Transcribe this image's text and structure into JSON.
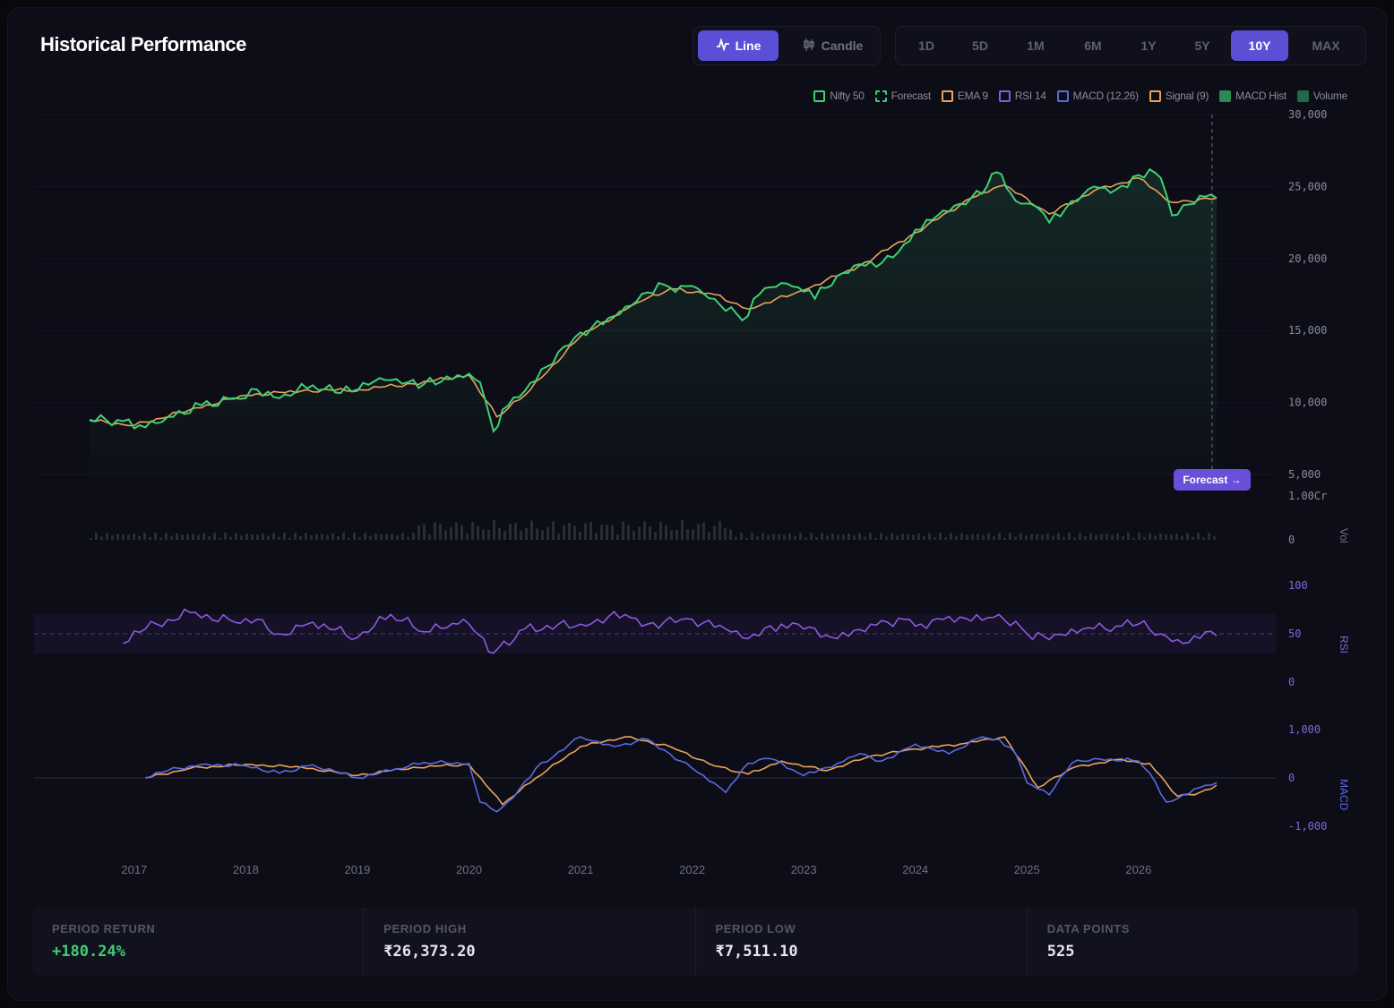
{
  "header": {
    "title": "Historical Performance",
    "chart_types": [
      {
        "label": "Line",
        "icon": "line-chart-icon",
        "active": true
      },
      {
        "label": "Candle",
        "icon": "candlestick-icon",
        "active": false
      }
    ],
    "ranges": [
      {
        "label": "1D",
        "active": false
      },
      {
        "label": "5D",
        "active": false
      },
      {
        "label": "1M",
        "active": false
      },
      {
        "label": "6M",
        "active": false
      },
      {
        "label": "1Y",
        "active": false
      },
      {
        "label": "5Y",
        "active": false
      },
      {
        "label": "10Y",
        "active": true
      },
      {
        "label": "MAX",
        "active": false
      }
    ]
  },
  "legend": [
    {
      "label": "Nifty 50",
      "color": "#3ecf74",
      "style": "outline"
    },
    {
      "label": "Forecast",
      "color": "#3ecf74",
      "style": "dashed"
    },
    {
      "label": "EMA 9",
      "color": "#e8a45a",
      "style": "outline"
    },
    {
      "label": "RSI 14",
      "color": "#8a5ae0",
      "style": "outline"
    },
    {
      "label": "MACD (12,26)",
      "color": "#5a6ae0",
      "style": "outline"
    },
    {
      "label": "Signal (9)",
      "color": "#e8a45a",
      "style": "outline"
    },
    {
      "label": "MACD Hist",
      "color": "#2a8a56",
      "style": "filled"
    },
    {
      "label": "Volume",
      "color": "#1f6b48",
      "style": "filled"
    }
  ],
  "forecast_label": "Forecast →",
  "colors": {
    "price": "#3ecf74",
    "ema": "#e8a45a",
    "rsi": "#8a5ae0",
    "macd": "#5a6ae0",
    "signal": "#e8a45a",
    "accent": "#5b4fd6"
  },
  "panels": {
    "vol_label": "Vol",
    "rsi_label": "RSI",
    "macd_label": "MACD"
  },
  "chart_data": {
    "type": "line",
    "x_ticks": [
      "2017",
      "2018",
      "2019",
      "2020",
      "2021",
      "2022",
      "2023",
      "2024",
      "2025",
      "2026"
    ],
    "price_axis": {
      "ticks": [
        "30,000",
        "25,000",
        "20,000",
        "15,000",
        "10,000",
        "5,000"
      ],
      "ylim": [
        5000,
        30000
      ]
    },
    "volume_axis": {
      "ticks": [
        "1.00Cr",
        "0"
      ]
    },
    "rsi_axis": {
      "ticks": [
        "100",
        "50",
        "0"
      ],
      "ylim": [
        0,
        100
      ]
    },
    "macd_axis": {
      "ticks": [
        "1,000",
        "0",
        "-1,000"
      ],
      "ylim": [
        -1000,
        1000
      ]
    },
    "series": [
      {
        "name": "Nifty 50",
        "x": [
          2016.6,
          2016.9,
          2017.0,
          2017.3,
          2017.6,
          2017.9,
          2018.1,
          2018.3,
          2018.6,
          2018.8,
          2019.0,
          2019.2,
          2019.4,
          2019.6,
          2019.9,
          2020.0,
          2020.1,
          2020.22,
          2020.3,
          2020.5,
          2020.7,
          2020.9,
          2021.1,
          2021.3,
          2021.5,
          2021.7,
          2021.8,
          2022.0,
          2022.2,
          2022.45,
          2022.6,
          2022.8,
          2022.95,
          2023.1,
          2023.3,
          2023.5,
          2023.7,
          2023.9,
          2024.0,
          2024.2,
          2024.4,
          2024.6,
          2024.73,
          2024.9,
          2025.1,
          2025.2,
          2025.4,
          2025.6,
          2025.8,
          2026.0,
          2026.1,
          2026.2,
          2026.3,
          2026.5,
          2026.6,
          2026.7
        ],
        "values": [
          8800,
          8700,
          8200,
          9000,
          9800,
          10300,
          10900,
          10300,
          11200,
          10700,
          10800,
          11700,
          11300,
          11300,
          11900,
          12000,
          11400,
          8000,
          9500,
          10800,
          12500,
          14000,
          15200,
          16000,
          17000,
          18300,
          18000,
          18100,
          17200,
          15700,
          17500,
          18300,
          18000,
          17200,
          18800,
          19600,
          19700,
          21000,
          22000,
          23000,
          23800,
          24500,
          26000,
          24000,
          23500,
          22500,
          24000,
          25000,
          24800,
          25800,
          26200,
          25600,
          23000,
          23800,
          24300,
          24200
        ]
      },
      {
        "name": "EMA 9",
        "x": [
          2016.6,
          2017.0,
          2017.5,
          2018.0,
          2018.5,
          2019.0,
          2019.5,
          2020.0,
          2020.25,
          2020.5,
          2021.0,
          2021.5,
          2021.8,
          2022.2,
          2022.5,
          2023.0,
          2023.5,
          2024.0,
          2024.5,
          2024.8,
          2025.2,
          2025.6,
          2026.0,
          2026.3,
          2026.7
        ],
        "values": [
          8750,
          8400,
          9500,
          10500,
          10800,
          10900,
          11300,
          11900,
          9000,
          10500,
          14600,
          16900,
          17900,
          17500,
          16500,
          17800,
          19500,
          21800,
          24200,
          25100,
          23100,
          24700,
          25600,
          23900,
          24200
        ]
      },
      {
        "name": "RSI 14",
        "x": [
          2016.9,
          2017.1,
          2017.5,
          2017.9,
          2018.1,
          2018.3,
          2018.6,
          2019.0,
          2019.3,
          2019.6,
          2019.9,
          2020.0,
          2020.22,
          2020.5,
          2021.0,
          2021.4,
          2021.6,
          2022.0,
          2022.3,
          2022.5,
          2022.8,
          2023.0,
          2023.3,
          2023.6,
          2023.9,
          2024.0,
          2024.3,
          2024.6,
          2024.75,
          2025.0,
          2025.2,
          2025.5,
          2025.8,
          2026.0,
          2026.2,
          2026.4,
          2026.6,
          2026.7
        ],
        "values": [
          40,
          55,
          72,
          62,
          65,
          50,
          62,
          46,
          70,
          52,
          60,
          60,
          30,
          55,
          60,
          70,
          60,
          65,
          55,
          45,
          60,
          55,
          45,
          60,
          65,
          58,
          68,
          64,
          70,
          50,
          44,
          55,
          58,
          60,
          50,
          40,
          52,
          48
        ]
      },
      {
        "name": "MACD (12,26)",
        "x": [
          2017.1,
          2017.3,
          2017.6,
          2018.0,
          2018.3,
          2018.6,
          2019.0,
          2019.3,
          2019.6,
          2020.0,
          2020.1,
          2020.25,
          2020.4,
          2020.6,
          2021.0,
          2021.3,
          2021.6,
          2021.8,
          2022.0,
          2022.3,
          2022.5,
          2022.7,
          2023.0,
          2023.3,
          2023.5,
          2023.7,
          2024.0,
          2024.3,
          2024.6,
          2024.75,
          2024.9,
          2025.0,
          2025.2,
          2025.4,
          2025.6,
          2026.0,
          2026.1,
          2026.25,
          2026.4,
          2026.55,
          2026.7
        ],
        "values": [
          0,
          150,
          280,
          250,
          100,
          270,
          0,
          150,
          320,
          300,
          -500,
          -700,
          -400,
          200,
          850,
          650,
          800,
          500,
          200,
          -300,
          300,
          400,
          50,
          300,
          500,
          350,
          700,
          500,
          850,
          800,
          500,
          -100,
          -350,
          300,
          400,
          350,
          100,
          -500,
          -350,
          -200,
          -100
        ]
      },
      {
        "name": "Signal (9)",
        "x": [
          2017.1,
          2017.5,
          2018.0,
          2018.5,
          2019.0,
          2019.5,
          2020.0,
          2020.3,
          2020.6,
          2021.0,
          2021.4,
          2021.8,
          2022.2,
          2022.5,
          2022.8,
          2023.2,
          2023.6,
          2024.0,
          2024.4,
          2024.8,
          2025.1,
          2025.4,
          2025.8,
          2026.1,
          2026.35,
          2026.55,
          2026.7
        ],
        "values": [
          0,
          200,
          280,
          220,
          50,
          220,
          280,
          -550,
          0,
          650,
          850,
          650,
          250,
          80,
          350,
          150,
          450,
          600,
          700,
          850,
          -200,
          200,
          380,
          300,
          -380,
          -300,
          -150
        ]
      }
    ]
  },
  "stats": [
    {
      "label": "PERIOD RETURN",
      "value": "+180.24%",
      "positive": true
    },
    {
      "label": "PERIOD HIGH",
      "value": "₹26,373.20",
      "positive": false
    },
    {
      "label": "PERIOD LOW",
      "value": "₹7,511.10",
      "positive": false
    },
    {
      "label": "DATA POINTS",
      "value": "525",
      "positive": false
    }
  ]
}
